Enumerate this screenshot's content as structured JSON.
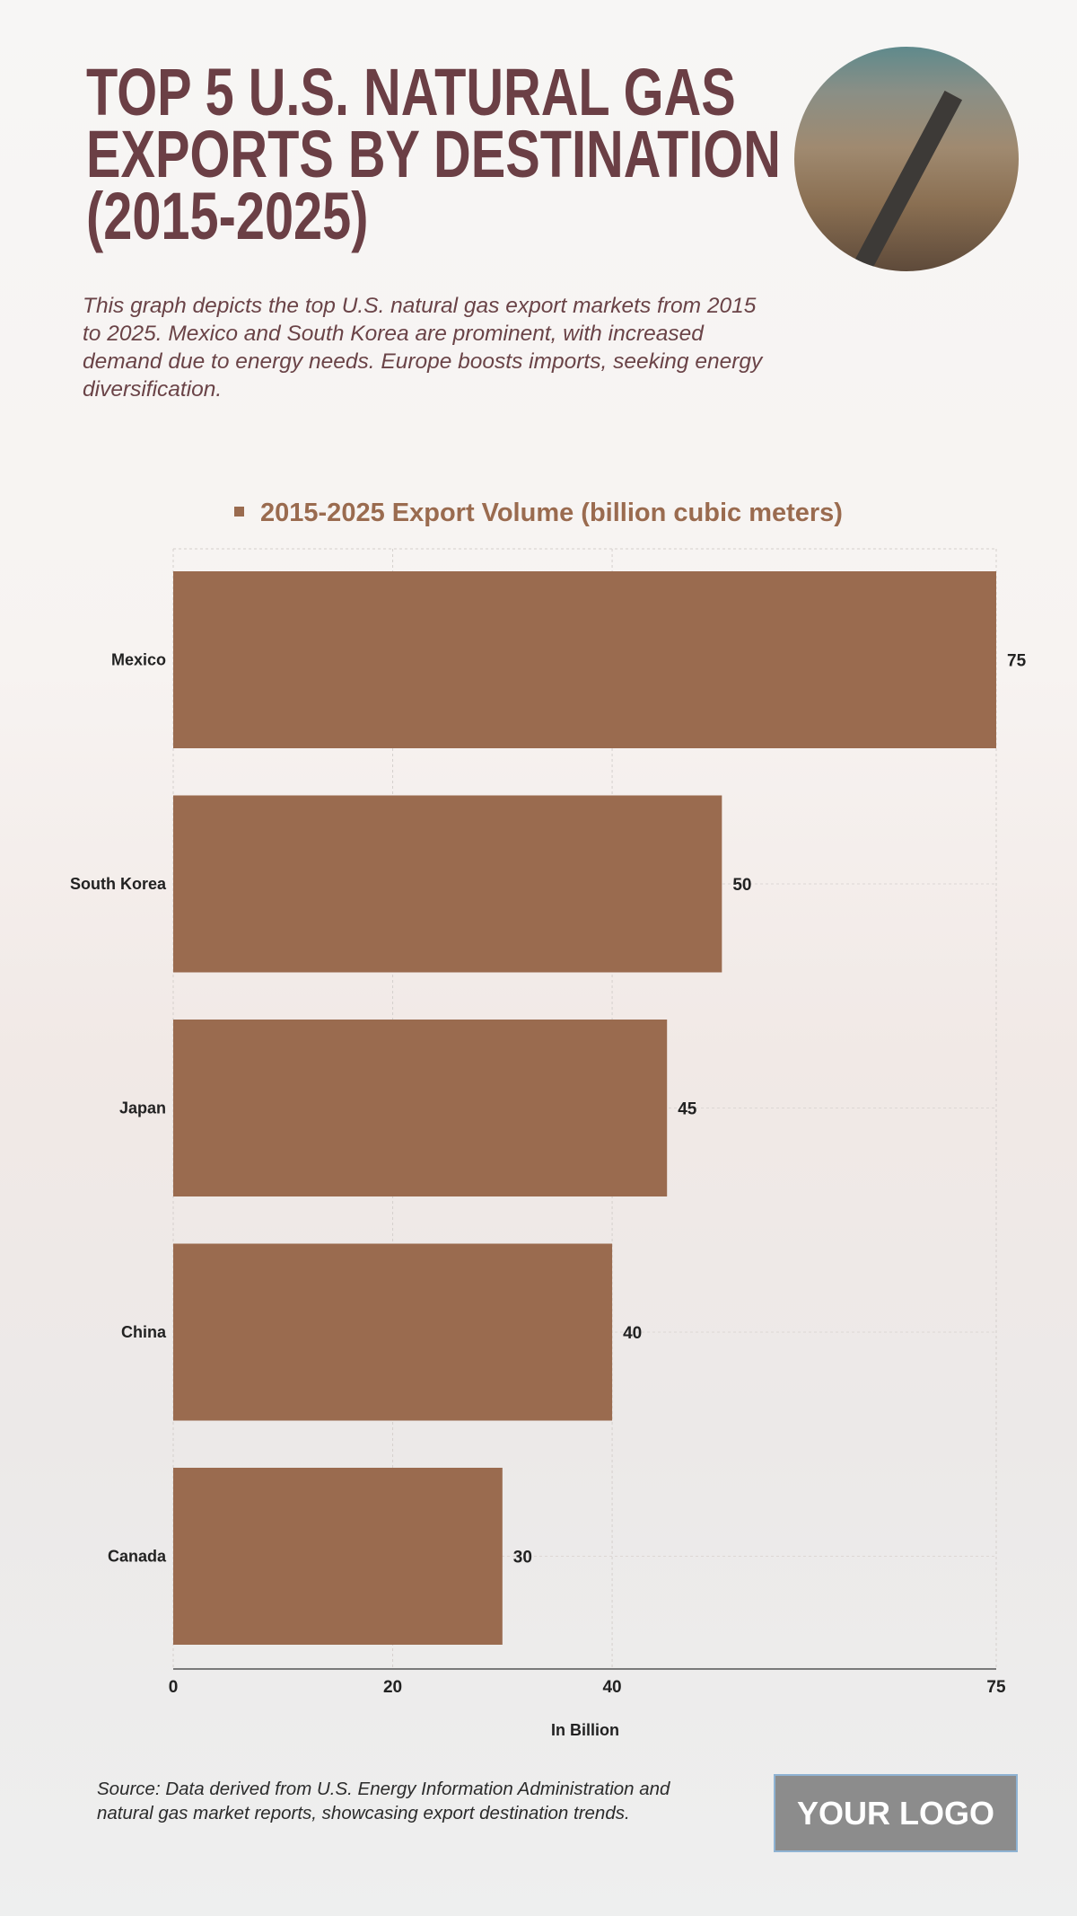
{
  "header": {
    "title_lines": [
      "TOP 5 U.S. NATURAL GAS",
      "EXPORTS BY DESTINATION",
      "(2015-2025)"
    ],
    "subtitle": "This graph depicts the top U.S. natural gas export markets from 2015 to 2025. Mexico and South Korea are prominent, with increased demand due to energy needs. Europe boosts imports, seeking energy diversification."
  },
  "chart_data": {
    "type": "bar",
    "orientation": "horizontal",
    "categories": [
      "Mexico",
      "South Korea",
      "Japan",
      "China",
      "Canada"
    ],
    "series": [
      {
        "name": "2015-2025 Export Volume (billion cubic meters)",
        "values": [
          75,
          50,
          45,
          40,
          30
        ]
      }
    ],
    "xlabel": "In Billion",
    "ylabel": "",
    "xlim": [
      0,
      75
    ],
    "xticks": [
      0,
      20,
      40,
      75
    ],
    "grid": true,
    "legend_position": "top",
    "bar_color": "#9a6b4f"
  },
  "footer": {
    "source": "Source: Data derived from U.S. Energy Information Administration and natural gas market reports, showcasing export destination trends.",
    "logo": "YOUR LOGO"
  }
}
